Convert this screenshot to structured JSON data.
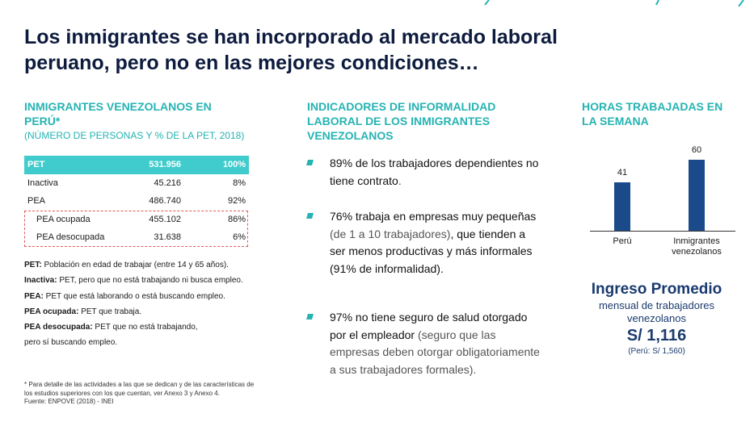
{
  "title": "Los inmigrantes se han incorporado al mercado laboral peruano, pero no en las mejores condiciones…",
  "left": {
    "heading": "INMIGRANTES VENEZOLANOS EN PERÚ*",
    "subheading": "(NÚMERO DE PERSONAS Y % DE LA PET, 2018)",
    "table": [
      {
        "label": "PET",
        "value": "531.956",
        "pct": "100%"
      },
      {
        "label": "Inactiva",
        "value": "45.216",
        "pct": "8%"
      },
      {
        "label": "PEA",
        "value": "486.740",
        "pct": "92%"
      },
      {
        "label": "PEA ocupada",
        "value": "455.102",
        "pct": "86%"
      },
      {
        "label": "PEA desocupada",
        "value": "31.638",
        "pct": "6%"
      }
    ],
    "definitions": [
      {
        "term": "PET:",
        "text": " Población en edad de trabajar (entre 14 y 65 años)."
      },
      {
        "term": "Inactiva:",
        "text": " PET, pero que no está trabajando ni busca empleo."
      },
      {
        "term": "PEA:",
        "text": " PET que está laborando o está buscando empleo."
      },
      {
        "term": "PEA ocupada:",
        "text": " PET que trabaja."
      },
      {
        "term": "PEA desocupada:",
        "text": " PET que no está trabajando,"
      },
      {
        "term": "",
        "text": "pero sí buscando empleo."
      }
    ],
    "footnote": "* Para detalle de las actividades a las que se dedican y de las características de los estudios superiores con los que cuentan, ver Anexo 3 y Anexo 4.",
    "source": "Fuente: ENPOVE (2018) - INEI"
  },
  "middle": {
    "heading": "INDICADORES DE INFORMALIDAD LABORAL DE LOS INMIGRANTES VENEZOLANOS",
    "bullets": [
      {
        "main": "89% de los trabajadores dependientes no tiene contrato",
        "grey": "."
      },
      {
        "main": "76% trabaja en empresas muy pequeñas",
        "grey": " (de 1 a 10 trabajadores)",
        "main2": ", que tienden a ser menos productivas y más informales (91% de informalidad)."
      },
      {
        "main": "97% no tiene seguro de salud otorgado por el empleador",
        "grey": " (seguro que las empresas deben otorgar obligatoriamente a sus trabajadores formales)."
      }
    ]
  },
  "right": {
    "heading": "HORAS TRABAJADAS EN LA SEMANA",
    "ingreso_title": "Ingreso Promedio",
    "ingreso_sub": "mensual de trabajadores venezolanos",
    "ingreso_value": "S/ 1,116",
    "ingreso_note": "(Perú: S/ 1,560)"
  },
  "chart_data": {
    "type": "bar",
    "title": "HORAS TRABAJADAS EN LA SEMANA",
    "categories": [
      "Perú",
      "Inmigrantes venezolanos"
    ],
    "values": [
      41,
      60
    ],
    "value_labels": [
      "41",
      "60"
    ],
    "ylim": [
      0,
      60
    ],
    "bar_color": "#1a4a8a"
  },
  "colors": {
    "accent": "#26b3b3",
    "title": "#0d1b3e",
    "navy": "#1a3a6e"
  }
}
